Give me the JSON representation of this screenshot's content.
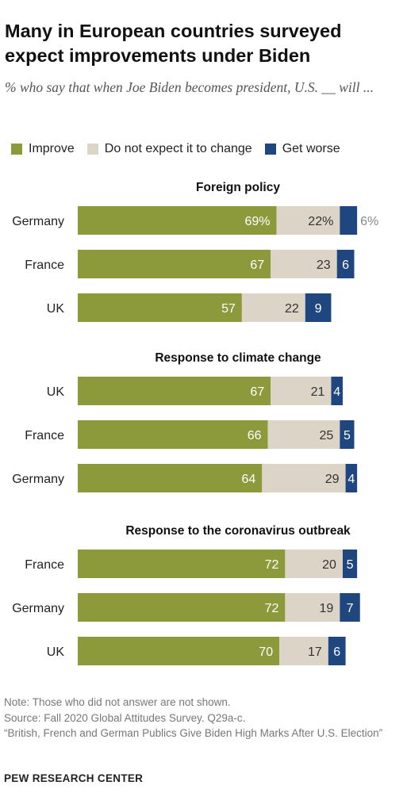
{
  "title": "Many in European countries surveyed expect improvements under Biden",
  "subtitle": "% who say that when Joe Biden becomes president, U.S. __ will ...",
  "note": "Note: Those who did not answer are not shown.",
  "source": "Source: Fall 2020 Global Attitudes Survey. Q29a-c.",
  "report": "“British, French and German Publics Give Biden High Marks After U.S. Election”",
  "brand": "PEW RESEARCH CENTER",
  "colors": {
    "improve": "#8c9a3c",
    "no_change": "#dcd5c7",
    "worse": "#1f467f",
    "label_gray": "#888888"
  },
  "chart_data": {
    "type": "bar",
    "orientation": "horizontal",
    "stacked": true,
    "legend_position": "top",
    "legend": [
      "Improve",
      "Do not expect it to change",
      "Get worse"
    ],
    "panels": [
      {
        "title": "Foreign policy",
        "categories": [
          "Germany",
          "France",
          "UK"
        ],
        "series": [
          {
            "name": "Improve",
            "values": [
              69,
              67,
              57
            ],
            "labels": [
              "69%",
              "67",
              "57"
            ]
          },
          {
            "name": "Do not expect it to change",
            "values": [
              22,
              23,
              22
            ],
            "labels": [
              "22%",
              "23",
              "22"
            ]
          },
          {
            "name": "Get worse",
            "values": [
              6,
              6,
              9
            ],
            "labels": [
              "6%",
              "6",
              "9"
            ]
          }
        ]
      },
      {
        "title": "Response to climate change",
        "categories": [
          "UK",
          "France",
          "Germany"
        ],
        "series": [
          {
            "name": "Improve",
            "values": [
              67,
              66,
              64
            ],
            "labels": [
              "67",
              "66",
              "64"
            ]
          },
          {
            "name": "Do not expect it to change",
            "values": [
              21,
              25,
              29
            ],
            "labels": [
              "21",
              "25",
              "29"
            ]
          },
          {
            "name": "Get worse",
            "values": [
              4,
              5,
              4
            ],
            "labels": [
              "4",
              "5",
              "4"
            ]
          }
        ]
      },
      {
        "title": "Response to the coronavirus outbreak",
        "categories": [
          "France",
          "Germany",
          "UK"
        ],
        "series": [
          {
            "name": "Improve",
            "values": [
              72,
              72,
              70
            ],
            "labels": [
              "72",
              "72",
              "70"
            ]
          },
          {
            "name": "Do not expect it to change",
            "values": [
              20,
              19,
              17
            ],
            "labels": [
              "20",
              "19",
              "17"
            ]
          },
          {
            "name": "Get worse",
            "values": [
              5,
              7,
              6
            ],
            "labels": [
              "5",
              "7",
              "6"
            ]
          }
        ]
      }
    ]
  }
}
